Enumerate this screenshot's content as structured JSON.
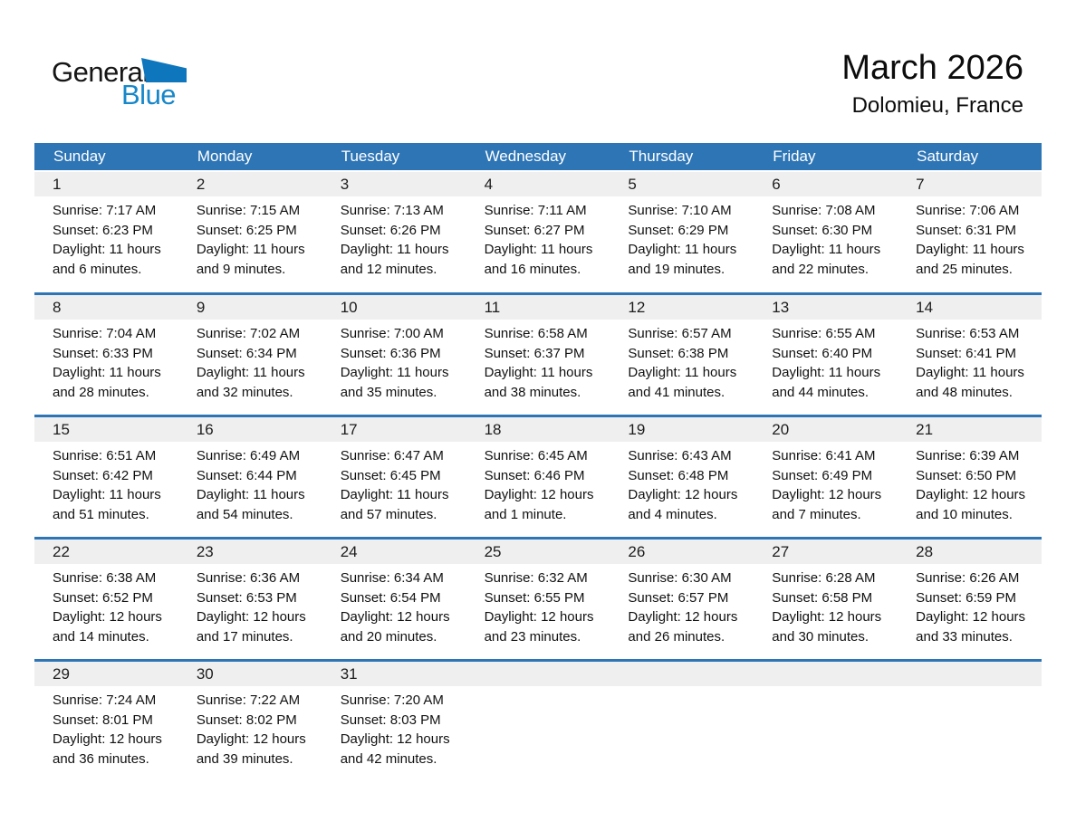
{
  "page": {
    "title": "March 2026",
    "subtitle": "Dolomieu, France"
  },
  "logo": {
    "part1": "General",
    "part2": "Blue"
  },
  "colors": {
    "header_blue": "#2e75b6",
    "row_line_blue": "#2e75b6",
    "band_gray": "#efefef",
    "logo_text_blue": "#1787c9",
    "logo_triangle_blue": "#0e76bd"
  },
  "calendar": {
    "weekdays": [
      "Sunday",
      "Monday",
      "Tuesday",
      "Wednesday",
      "Thursday",
      "Friday",
      "Saturday"
    ],
    "weeks": [
      [
        {
          "day": "1",
          "sunrise": "Sunrise: 7:17 AM",
          "sunset": "Sunset: 6:23 PM",
          "daylight1": "Daylight: 11 hours",
          "daylight2": "and 6 minutes."
        },
        {
          "day": "2",
          "sunrise": "Sunrise: 7:15 AM",
          "sunset": "Sunset: 6:25 PM",
          "daylight1": "Daylight: 11 hours",
          "daylight2": "and 9 minutes."
        },
        {
          "day": "3",
          "sunrise": "Sunrise: 7:13 AM",
          "sunset": "Sunset: 6:26 PM",
          "daylight1": "Daylight: 11 hours",
          "daylight2": "and 12 minutes."
        },
        {
          "day": "4",
          "sunrise": "Sunrise: 7:11 AM",
          "sunset": "Sunset: 6:27 PM",
          "daylight1": "Daylight: 11 hours",
          "daylight2": "and 16 minutes."
        },
        {
          "day": "5",
          "sunrise": "Sunrise: 7:10 AM",
          "sunset": "Sunset: 6:29 PM",
          "daylight1": "Daylight: 11 hours",
          "daylight2": "and 19 minutes."
        },
        {
          "day": "6",
          "sunrise": "Sunrise: 7:08 AM",
          "sunset": "Sunset: 6:30 PM",
          "daylight1": "Daylight: 11 hours",
          "daylight2": "and 22 minutes."
        },
        {
          "day": "7",
          "sunrise": "Sunrise: 7:06 AM",
          "sunset": "Sunset: 6:31 PM",
          "daylight1": "Daylight: 11 hours",
          "daylight2": "and 25 minutes."
        }
      ],
      [
        {
          "day": "8",
          "sunrise": "Sunrise: 7:04 AM",
          "sunset": "Sunset: 6:33 PM",
          "daylight1": "Daylight: 11 hours",
          "daylight2": "and 28 minutes."
        },
        {
          "day": "9",
          "sunrise": "Sunrise: 7:02 AM",
          "sunset": "Sunset: 6:34 PM",
          "daylight1": "Daylight: 11 hours",
          "daylight2": "and 32 minutes."
        },
        {
          "day": "10",
          "sunrise": "Sunrise: 7:00 AM",
          "sunset": "Sunset: 6:36 PM",
          "daylight1": "Daylight: 11 hours",
          "daylight2": "and 35 minutes."
        },
        {
          "day": "11",
          "sunrise": "Sunrise: 6:58 AM",
          "sunset": "Sunset: 6:37 PM",
          "daylight1": "Daylight: 11 hours",
          "daylight2": "and 38 minutes."
        },
        {
          "day": "12",
          "sunrise": "Sunrise: 6:57 AM",
          "sunset": "Sunset: 6:38 PM",
          "daylight1": "Daylight: 11 hours",
          "daylight2": "and 41 minutes."
        },
        {
          "day": "13",
          "sunrise": "Sunrise: 6:55 AM",
          "sunset": "Sunset: 6:40 PM",
          "daylight1": "Daylight: 11 hours",
          "daylight2": "and 44 minutes."
        },
        {
          "day": "14",
          "sunrise": "Sunrise: 6:53 AM",
          "sunset": "Sunset: 6:41 PM",
          "daylight1": "Daylight: 11 hours",
          "daylight2": "and 48 minutes."
        }
      ],
      [
        {
          "day": "15",
          "sunrise": "Sunrise: 6:51 AM",
          "sunset": "Sunset: 6:42 PM",
          "daylight1": "Daylight: 11 hours",
          "daylight2": "and 51 minutes."
        },
        {
          "day": "16",
          "sunrise": "Sunrise: 6:49 AM",
          "sunset": "Sunset: 6:44 PM",
          "daylight1": "Daylight: 11 hours",
          "daylight2": "and 54 minutes."
        },
        {
          "day": "17",
          "sunrise": "Sunrise: 6:47 AM",
          "sunset": "Sunset: 6:45 PM",
          "daylight1": "Daylight: 11 hours",
          "daylight2": "and 57 minutes."
        },
        {
          "day": "18",
          "sunrise": "Sunrise: 6:45 AM",
          "sunset": "Sunset: 6:46 PM",
          "daylight1": "Daylight: 12 hours",
          "daylight2": "and 1 minute."
        },
        {
          "day": "19",
          "sunrise": "Sunrise: 6:43 AM",
          "sunset": "Sunset: 6:48 PM",
          "daylight1": "Daylight: 12 hours",
          "daylight2": "and 4 minutes."
        },
        {
          "day": "20",
          "sunrise": "Sunrise: 6:41 AM",
          "sunset": "Sunset: 6:49 PM",
          "daylight1": "Daylight: 12 hours",
          "daylight2": "and 7 minutes."
        },
        {
          "day": "21",
          "sunrise": "Sunrise: 6:39 AM",
          "sunset": "Sunset: 6:50 PM",
          "daylight1": "Daylight: 12 hours",
          "daylight2": "and 10 minutes."
        }
      ],
      [
        {
          "day": "22",
          "sunrise": "Sunrise: 6:38 AM",
          "sunset": "Sunset: 6:52 PM",
          "daylight1": "Daylight: 12 hours",
          "daylight2": "and 14 minutes."
        },
        {
          "day": "23",
          "sunrise": "Sunrise: 6:36 AM",
          "sunset": "Sunset: 6:53 PM",
          "daylight1": "Daylight: 12 hours",
          "daylight2": "and 17 minutes."
        },
        {
          "day": "24",
          "sunrise": "Sunrise: 6:34 AM",
          "sunset": "Sunset: 6:54 PM",
          "daylight1": "Daylight: 12 hours",
          "daylight2": "and 20 minutes."
        },
        {
          "day": "25",
          "sunrise": "Sunrise: 6:32 AM",
          "sunset": "Sunset: 6:55 PM",
          "daylight1": "Daylight: 12 hours",
          "daylight2": "and 23 minutes."
        },
        {
          "day": "26",
          "sunrise": "Sunrise: 6:30 AM",
          "sunset": "Sunset: 6:57 PM",
          "daylight1": "Daylight: 12 hours",
          "daylight2": "and 26 minutes."
        },
        {
          "day": "27",
          "sunrise": "Sunrise: 6:28 AM",
          "sunset": "Sunset: 6:58 PM",
          "daylight1": "Daylight: 12 hours",
          "daylight2": "and 30 minutes."
        },
        {
          "day": "28",
          "sunrise": "Sunrise: 6:26 AM",
          "sunset": "Sunset: 6:59 PM",
          "daylight1": "Daylight: 12 hours",
          "daylight2": "and 33 minutes."
        }
      ],
      [
        {
          "day": "29",
          "sunrise": "Sunrise: 7:24 AM",
          "sunset": "Sunset: 8:01 PM",
          "daylight1": "Daylight: 12 hours",
          "daylight2": "and 36 minutes."
        },
        {
          "day": "30",
          "sunrise": "Sunrise: 7:22 AM",
          "sunset": "Sunset: 8:02 PM",
          "daylight1": "Daylight: 12 hours",
          "daylight2": "and 39 minutes."
        },
        {
          "day": "31",
          "sunrise": "Sunrise: 7:20 AM",
          "sunset": "Sunset: 8:03 PM",
          "daylight1": "Daylight: 12 hours",
          "daylight2": "and 42 minutes."
        },
        null,
        null,
        null,
        null
      ]
    ]
  }
}
